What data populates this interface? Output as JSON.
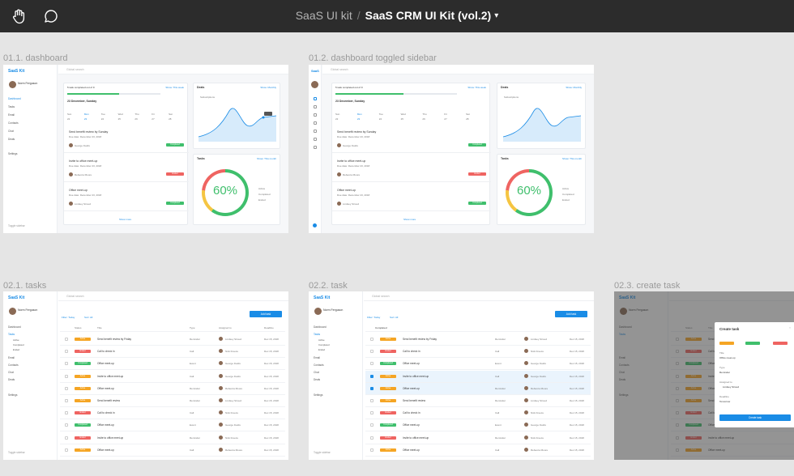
{
  "toolbar": {
    "project": "SaaS UI kit",
    "separator": "/",
    "file": "SaaS CRM UI Kit (vol.2)"
  },
  "frames": {
    "dash": {
      "label": "01.1. dashboard"
    },
    "dash_toggled": {
      "label": "01.2. dashboard toggled sidebar"
    },
    "tasks": {
      "label": "02.1. tasks"
    },
    "task": {
      "label": "02.2. task"
    },
    "create": {
      "label": "02.3. create task"
    }
  },
  "app": {
    "logo": "SaaS Kit",
    "logo_short": "SaaS",
    "user_name": "Norm Ferguson",
    "search_placeholder": "Global search",
    "nav": [
      "Dashboard",
      "Tasks",
      "Email",
      "Contacts",
      "Chat",
      "Deals"
    ],
    "settings": "Settings",
    "toggle": "Toggle sidebar"
  },
  "dashboard": {
    "progress_text": "5 task completed out of 9",
    "progress_link": "Show: This week",
    "progress_value": 0.56,
    "date_title": "23 December, Sunday",
    "weekdays": [
      "Sun",
      "Mon",
      "Tue",
      "Wed",
      "Thu",
      "Fri",
      "Sat"
    ],
    "days": [
      "22",
      "23",
      "24",
      "25",
      "26",
      "27",
      "28"
    ],
    "tasks": [
      {
        "title": "Send benefit review by Sunday",
        "meta": "Due date: December 23, 2018",
        "person": "George Fields",
        "status": "Completed",
        "color": "#3fbf6c"
      },
      {
        "title": "Invite to office meet-up",
        "meta": "Due date: December 23, 2018",
        "person": "Rebecca Moore",
        "status": "Ended",
        "color": "#ef6461"
      },
      {
        "title": "Office meet-up",
        "meta": "Due date: December 23, 2018",
        "person": "Lindsey Stroud",
        "status": "Completed",
        "color": "#3fbf6c"
      }
    ],
    "show_more": "Show more",
    "deals_title": "Deals",
    "deals_link": "Show: Monthly",
    "deals_legend": "Subscriptions",
    "tasks_title": "Tasks",
    "tasks_link": "Show: This month",
    "tasks_pct": "60%",
    "tasks_pct_value": 0.6,
    "tasks_legend": [
      "Active",
      "Completed",
      "Ended"
    ]
  },
  "tasks_page": {
    "add": "Add task",
    "filters": [
      "Filter: Today",
      "Sort: All"
    ],
    "columns": [
      "Status",
      "Title",
      "Type",
      "Assigned to",
      "Deadline"
    ],
    "rows": [
      {
        "status": "Active",
        "color": "#f5a524",
        "title": "Send benefit review by Friday",
        "type": "Reminder",
        "person": "Lindsey Stroud",
        "date": "Dec 15, 2018"
      },
      {
        "status": "Ended",
        "color": "#ef6461",
        "title": "Call to check in",
        "type": "Call",
        "person": "Nick Freeze",
        "date": "Dec 15, 2018"
      },
      {
        "status": "Completed",
        "color": "#3fbf6c",
        "title": "Office meet-up",
        "type": "Event",
        "person": "George Fields",
        "date": "Dec 15, 2018"
      },
      {
        "status": "Active",
        "color": "#f5a524",
        "title": "Invite to office meet-up",
        "type": "Call",
        "person": "George Fields",
        "date": "Dec 15, 2018"
      },
      {
        "status": "Active",
        "color": "#f5a524",
        "title": "Office meet-up",
        "type": "Reminder",
        "person": "Rebecca Moore",
        "date": "Dec 15, 2018"
      },
      {
        "status": "Active",
        "color": "#f5a524",
        "title": "Send benefit review",
        "type": "Reminder",
        "person": "Lindsey Stroud",
        "date": "Dec 15, 2018"
      },
      {
        "status": "Ended",
        "color": "#ef6461",
        "title": "Call to check in",
        "type": "Call",
        "person": "Nick Freeze",
        "date": "Dec 15, 2018"
      },
      {
        "status": "Completed",
        "color": "#3fbf6c",
        "title": "Office meet-up",
        "type": "Event",
        "person": "George Fields",
        "date": "Dec 15, 2018"
      },
      {
        "status": "Ended",
        "color": "#ef6461",
        "title": "Invite to office meet-up",
        "type": "Reminder",
        "person": "Nick Freeze",
        "date": "Dec 15, 2018"
      },
      {
        "status": "Active",
        "color": "#f5a524",
        "title": "Office meet-up",
        "type": "Call",
        "person": "Rebecca Moore",
        "date": "Dec 15, 2018"
      }
    ],
    "completed_toggle": "Completed",
    "subnav": [
      "Active",
      "Completed",
      "Ended"
    ]
  },
  "create_task": {
    "title": "Create task",
    "fields": [
      "Title",
      "Type",
      "Assigned to",
      "Deadline"
    ],
    "values": [
      "Office meet-up",
      "Reminder",
      "Lindsey Stroud",
      "Tomorrow"
    ],
    "submit": "Create task"
  },
  "colors": {
    "accent": "#1a8ce6",
    "green": "#3fbf6c",
    "orange": "#f5a524",
    "red": "#ef6461"
  }
}
